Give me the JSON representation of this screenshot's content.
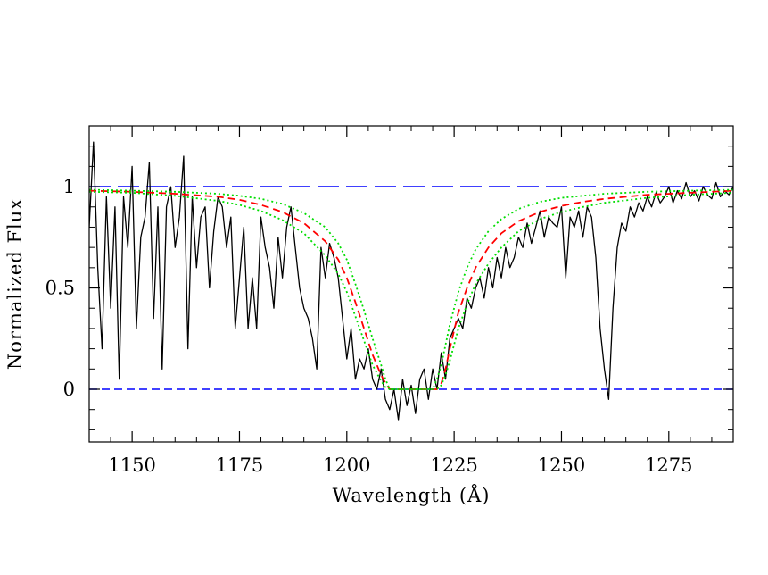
{
  "chart_data": {
    "type": "line",
    "title": "",
    "xlabel": "Wavelength (Å)",
    "ylabel": "Normalized Flux",
    "xlim": [
      1140,
      1290
    ],
    "ylim": [
      -0.26,
      1.3
    ],
    "xticks": [
      {
        "value": 1150,
        "label": "1150"
      },
      {
        "value": 1175,
        "label": "1175"
      },
      {
        "value": 1200,
        "label": "1200"
      },
      {
        "value": 1225,
        "label": "1225"
      },
      {
        "value": 1250,
        "label": "1250"
      },
      {
        "value": 1275,
        "label": "1275"
      }
    ],
    "yticks": [
      {
        "value": 0,
        "label": "0"
      },
      {
        "value": 0.5,
        "label": "0.5"
      },
      {
        "value": 1,
        "label": "1"
      }
    ],
    "grid": false,
    "reference_lines": [
      {
        "y": 1,
        "style": "long-dash",
        "color": "#0000ff"
      },
      {
        "y": 0,
        "style": "dash",
        "color": "#0000ff"
      }
    ],
    "series": [
      {
        "kind": "observed spectrum",
        "color": "#000000",
        "style": "solid",
        "x": [
          1140,
          1141,
          1142,
          1143,
          1144,
          1145,
          1146,
          1147,
          1148,
          1149,
          1150,
          1151,
          1152,
          1153,
          1154,
          1155,
          1156,
          1157,
          1158,
          1159,
          1160,
          1161,
          1162,
          1163,
          1164,
          1165,
          1166,
          1167,
          1168,
          1169,
          1170,
          1171,
          1172,
          1173,
          1174,
          1175,
          1176,
          1177,
          1178,
          1179,
          1180,
          1181,
          1182,
          1183,
          1184,
          1185,
          1186,
          1187,
          1188,
          1189,
          1190,
          1191,
          1192,
          1193,
          1194,
          1195,
          1196,
          1197,
          1198,
          1199,
          1200,
          1201,
          1202,
          1203,
          1204,
          1205,
          1206,
          1207,
          1208,
          1209,
          1210,
          1211,
          1212,
          1213,
          1214,
          1215,
          1216,
          1217,
          1218,
          1219,
          1220,
          1221,
          1222,
          1223,
          1224,
          1225,
          1226,
          1227,
          1228,
          1229,
          1230,
          1231,
          1232,
          1233,
          1234,
          1235,
          1236,
          1237,
          1238,
          1239,
          1240,
          1241,
          1242,
          1243,
          1244,
          1245,
          1246,
          1247,
          1248,
          1249,
          1250,
          1251,
          1252,
          1253,
          1254,
          1255,
          1256,
          1257,
          1258,
          1259,
          1260,
          1261,
          1262,
          1263,
          1264,
          1265,
          1266,
          1267,
          1268,
          1269,
          1270,
          1271,
          1272,
          1273,
          1274,
          1275,
          1276,
          1277,
          1278,
          1279,
          1280,
          1281,
          1282,
          1283,
          1284,
          1285,
          1286,
          1287,
          1288,
          1289,
          1290
        ],
        "y": [
          0.8,
          1.22,
          0.6,
          0.2,
          0.95,
          0.4,
          0.9,
          0.05,
          0.95,
          0.7,
          1.1,
          0.3,
          0.75,
          0.85,
          1.12,
          0.35,
          0.9,
          0.1,
          0.9,
          1.0,
          0.7,
          0.85,
          1.15,
          0.2,
          0.95,
          0.6,
          0.85,
          0.9,
          0.5,
          0.78,
          0.95,
          0.9,
          0.7,
          0.85,
          0.3,
          0.55,
          0.8,
          0.3,
          0.55,
          0.3,
          0.85,
          0.7,
          0.6,
          0.4,
          0.75,
          0.55,
          0.8,
          0.9,
          0.7,
          0.5,
          0.4,
          0.35,
          0.25,
          0.1,
          0.7,
          0.55,
          0.72,
          0.65,
          0.55,
          0.35,
          0.15,
          0.3,
          0.05,
          0.15,
          0.1,
          0.2,
          0.05,
          0.0,
          0.1,
          -0.05,
          -0.1,
          0.0,
          -0.15,
          0.05,
          -0.08,
          0.02,
          -0.12,
          0.05,
          0.1,
          -0.05,
          0.1,
          0.0,
          0.18,
          0.05,
          0.25,
          0.3,
          0.35,
          0.3,
          0.45,
          0.4,
          0.5,
          0.55,
          0.45,
          0.6,
          0.5,
          0.65,
          0.55,
          0.7,
          0.6,
          0.65,
          0.75,
          0.7,
          0.82,
          0.72,
          0.8,
          0.88,
          0.75,
          0.85,
          0.82,
          0.8,
          0.9,
          0.55,
          0.85,
          0.8,
          0.88,
          0.75,
          0.9,
          0.85,
          0.65,
          0.3,
          0.1,
          -0.05,
          0.4,
          0.7,
          0.82,
          0.78,
          0.9,
          0.85,
          0.92,
          0.88,
          0.95,
          0.9,
          0.97,
          0.92,
          0.95,
          1.0,
          0.92,
          0.98,
          0.94,
          1.02,
          0.95,
          0.98,
          0.93,
          1.0,
          0.96,
          0.94,
          1.02,
          0.95,
          0.98,
          0.96,
          1.0
        ]
      },
      {
        "kind": "damped Lyman-alpha fit",
        "color": "#ff0000",
        "style": "dashed",
        "x": [
          1140,
          1150,
          1160,
          1170,
          1175,
          1180,
          1185,
          1190,
          1195,
          1198,
          1200,
          1202,
          1204,
          1206,
          1208,
          1209,
          1210,
          1211,
          1212,
          1214,
          1216,
          1218,
          1220,
          1221,
          1222,
          1223,
          1224,
          1226,
          1228,
          1230,
          1233,
          1236,
          1240,
          1245,
          1250,
          1255,
          1260,
          1270,
          1280,
          1290
        ],
        "y": [
          0.98,
          0.975,
          0.965,
          0.95,
          0.935,
          0.91,
          0.875,
          0.82,
          0.73,
          0.64,
          0.55,
          0.43,
          0.3,
          0.17,
          0.07,
          0.03,
          0.0,
          0.0,
          0.0,
          0.0,
          0.0,
          0.0,
          0.0,
          0.0,
          0.03,
          0.1,
          0.2,
          0.38,
          0.5,
          0.6,
          0.7,
          0.77,
          0.83,
          0.875,
          0.905,
          0.925,
          0.94,
          0.96,
          0.97,
          0.98
        ]
      },
      {
        "kind": "fit uncertainty (inner)",
        "color": "#00dd00",
        "style": "dotted",
        "x": [
          1140,
          1150,
          1160,
          1170,
          1175,
          1180,
          1185,
          1190,
          1195,
          1198,
          1200,
          1202,
          1204,
          1206,
          1208,
          1209,
          1210,
          1211,
          1212,
          1216,
          1220,
          1221,
          1222,
          1223,
          1224,
          1226,
          1228,
          1230,
          1233,
          1236,
          1240,
          1245,
          1250,
          1255,
          1260,
          1270,
          1280,
          1290
        ],
        "y": [
          0.975,
          0.97,
          0.955,
          0.93,
          0.91,
          0.88,
          0.835,
          0.77,
          0.66,
          0.57,
          0.48,
          0.36,
          0.24,
          0.12,
          0.04,
          0.01,
          0.0,
          0.0,
          0.0,
          0.0,
          0.0,
          0.0,
          0.02,
          0.07,
          0.14,
          0.3,
          0.42,
          0.52,
          0.62,
          0.7,
          0.78,
          0.84,
          0.875,
          0.9,
          0.92,
          0.945,
          0.96,
          0.97
        ]
      },
      {
        "kind": "fit uncertainty (outer)",
        "color": "#00dd00",
        "style": "dotted",
        "x": [
          1140,
          1150,
          1160,
          1170,
          1175,
          1180,
          1185,
          1190,
          1195,
          1198,
          1200,
          1202,
          1204,
          1206,
          1208,
          1209,
          1210,
          1212,
          1216,
          1220,
          1221,
          1222,
          1223,
          1224,
          1226,
          1228,
          1230,
          1233,
          1236,
          1240,
          1245,
          1250,
          1255,
          1260,
          1270,
          1280,
          1290
        ],
        "y": [
          0.985,
          0.98,
          0.975,
          0.965,
          0.955,
          0.94,
          0.915,
          0.87,
          0.8,
          0.72,
          0.64,
          0.52,
          0.39,
          0.25,
          0.12,
          0.05,
          0.0,
          0.0,
          0.0,
          0.0,
          0.05,
          0.12,
          0.22,
          0.32,
          0.48,
          0.6,
          0.69,
          0.78,
          0.84,
          0.89,
          0.925,
          0.945,
          0.955,
          0.965,
          0.975,
          0.98,
          0.985
        ]
      }
    ]
  }
}
